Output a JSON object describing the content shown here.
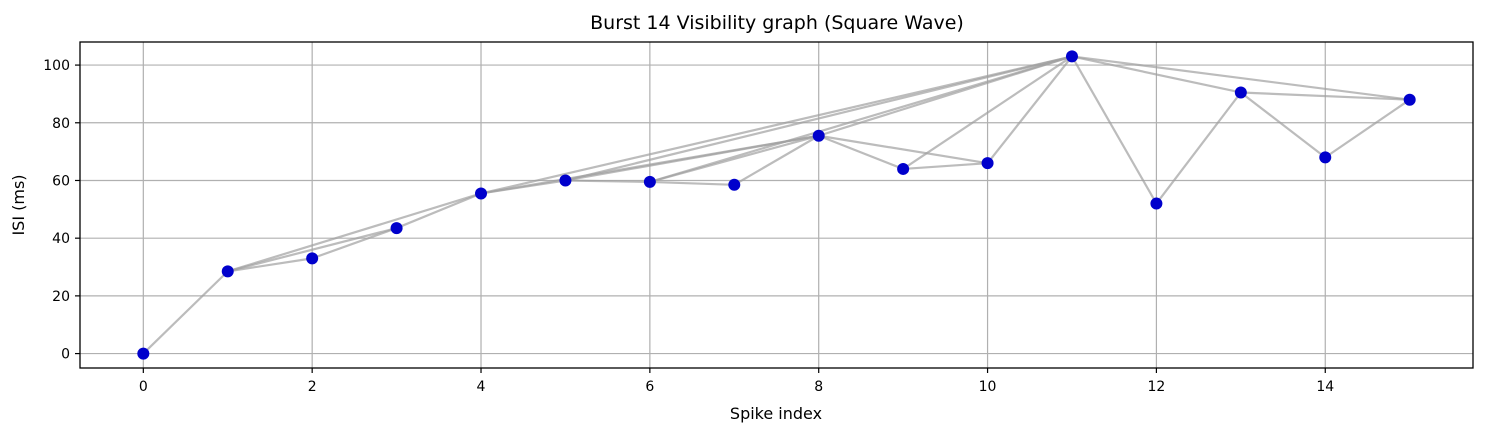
{
  "chart_data": {
    "type": "scatter",
    "title": "Burst 14 Visibility graph (Square Wave)",
    "xlabel": "Spike index",
    "ylabel": "ISI (ms)",
    "xlim": [
      -0.75,
      15.75
    ],
    "ylim": [
      -5,
      108
    ],
    "xticks": [
      0,
      2,
      4,
      6,
      8,
      10,
      12,
      14
    ],
    "yticks": [
      0,
      20,
      40,
      60,
      80,
      100
    ],
    "grid": true,
    "series": [
      {
        "x": [
          0,
          1,
          2,
          3,
          4,
          5,
          6,
          7,
          8,
          9,
          10,
          11,
          12,
          13,
          14,
          15
        ],
        "values": [
          0,
          28.5,
          33,
          43.5,
          55.5,
          60,
          59.5,
          58.5,
          75.5,
          64,
          66,
          103,
          52,
          90.5,
          68,
          88
        ],
        "color": "#0000cc"
      }
    ],
    "edges": [
      [
        0,
        1
      ],
      [
        1,
        2
      ],
      [
        1,
        3
      ],
      [
        1,
        4
      ],
      [
        2,
        3
      ],
      [
        3,
        4
      ],
      [
        4,
        5
      ],
      [
        4,
        8
      ],
      [
        4,
        11
      ],
      [
        5,
        6
      ],
      [
        5,
        8
      ],
      [
        5,
        11
      ],
      [
        6,
        7
      ],
      [
        6,
        8
      ],
      [
        6,
        11
      ],
      [
        7,
        8
      ],
      [
        8,
        9
      ],
      [
        8,
        10
      ],
      [
        8,
        11
      ],
      [
        9,
        10
      ],
      [
        9,
        11
      ],
      [
        10,
        11
      ],
      [
        11,
        12
      ],
      [
        11,
        13
      ],
      [
        11,
        15
      ],
      [
        12,
        13
      ],
      [
        13,
        14
      ],
      [
        13,
        15
      ],
      [
        14,
        15
      ]
    ],
    "edge_color": "#a0a0a0"
  }
}
